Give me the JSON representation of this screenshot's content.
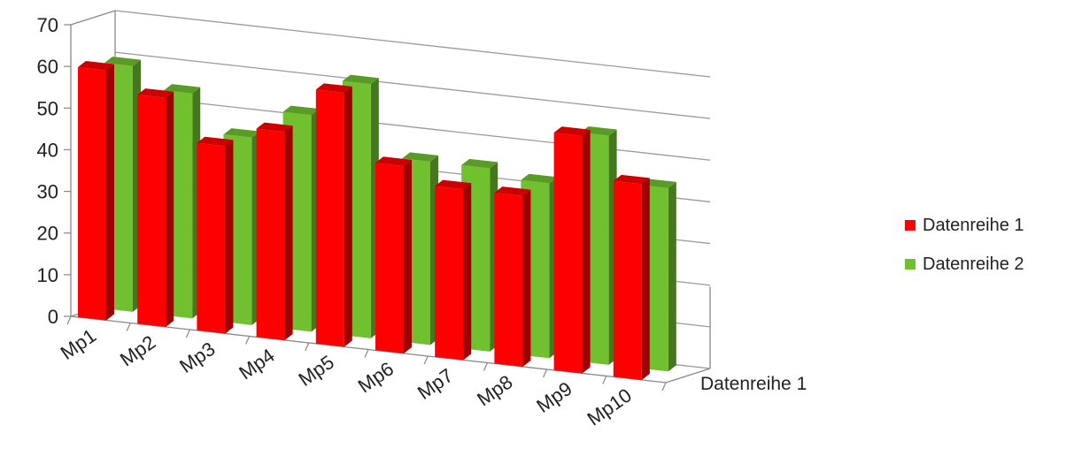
{
  "chart_data": {
    "type": "bar",
    "categories": [
      "Mp1",
      "Mp2",
      "Mp3",
      "Mp4",
      "Mp5",
      "Mp6",
      "Mp7",
      "Mp8",
      "Mp9",
      "Mp10"
    ],
    "series": [
      {
        "name": "Datenreihe 1",
        "values": [
          60,
          55,
          45,
          50,
          61,
          45,
          41,
          41,
          57,
          47
        ],
        "color": "#ff0000"
      },
      {
        "name": "Datenreihe 2",
        "values": [
          59,
          54,
          45,
          52,
          61,
          44,
          44,
          42,
          55,
          44
        ],
        "color": "#70c030"
      }
    ],
    "ylim": [
      0,
      70
    ],
    "yticks": [
      0,
      10,
      20,
      30,
      40,
      50,
      60,
      70
    ],
    "depth_axis_label": "Datenreihe 1",
    "grid": true,
    "legend": "right",
    "style": "3d-clustered-column"
  }
}
